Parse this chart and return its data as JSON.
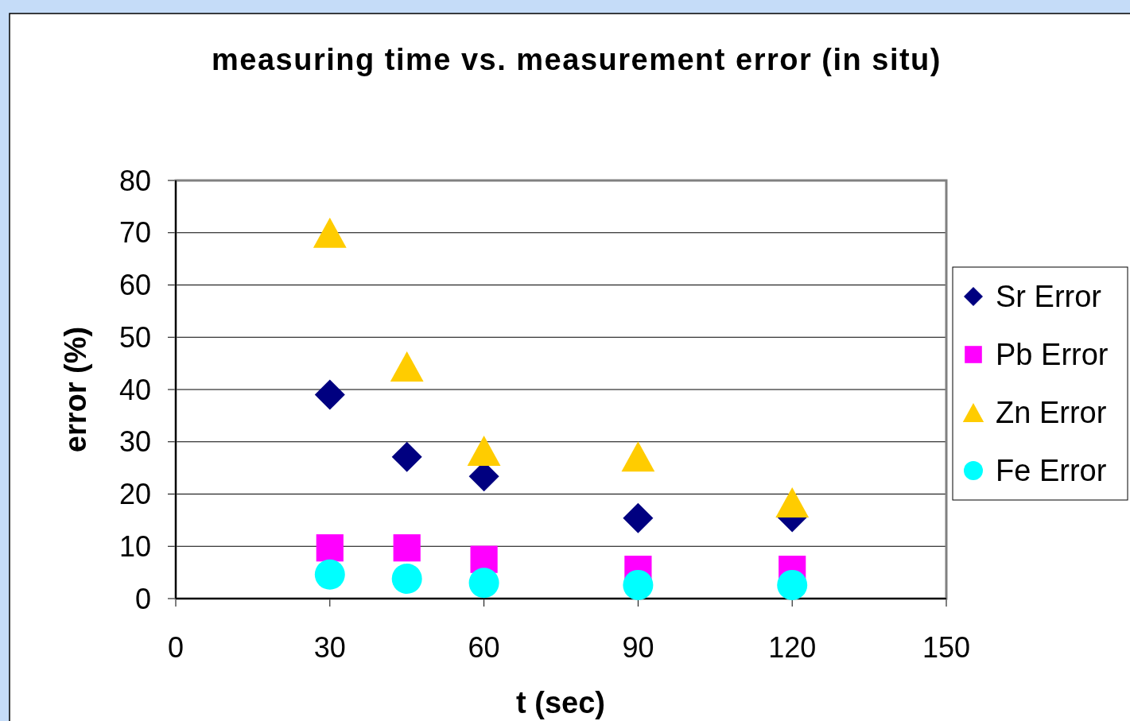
{
  "chart_data": {
    "type": "scatter",
    "title": "measuring time vs. measurement error (in situ)",
    "xlabel": "t (sec)",
    "ylabel": "error (%)",
    "x": [
      30,
      45,
      60,
      90,
      120
    ],
    "xlim": [
      0,
      150
    ],
    "xticks": [
      0,
      30,
      60,
      90,
      120,
      150
    ],
    "ylim": [
      0,
      80
    ],
    "yticks": [
      0,
      10,
      20,
      30,
      40,
      50,
      60,
      70,
      80
    ],
    "grid": "y",
    "legend": "right",
    "series": [
      {
        "name": "Sr Error",
        "color": "#000080",
        "marker": "diamond",
        "values": [
          39,
          27.1,
          23.4,
          15.4,
          15.6
        ]
      },
      {
        "name": "Pb Error",
        "color": "#ff00ff",
        "marker": "square",
        "values": [
          9.7,
          9.7,
          7.5,
          5.6,
          5.6
        ]
      },
      {
        "name": "Zn Error",
        "color": "#ffcc00",
        "marker": "triangle",
        "values": [
          70,
          44.4,
          28.3,
          27.2,
          18.4
        ]
      },
      {
        "name": "Fe Error",
        "color": "#00ffff",
        "marker": "circle",
        "values": [
          4.6,
          3.8,
          3,
          2.6,
          2.6
        ]
      }
    ]
  }
}
